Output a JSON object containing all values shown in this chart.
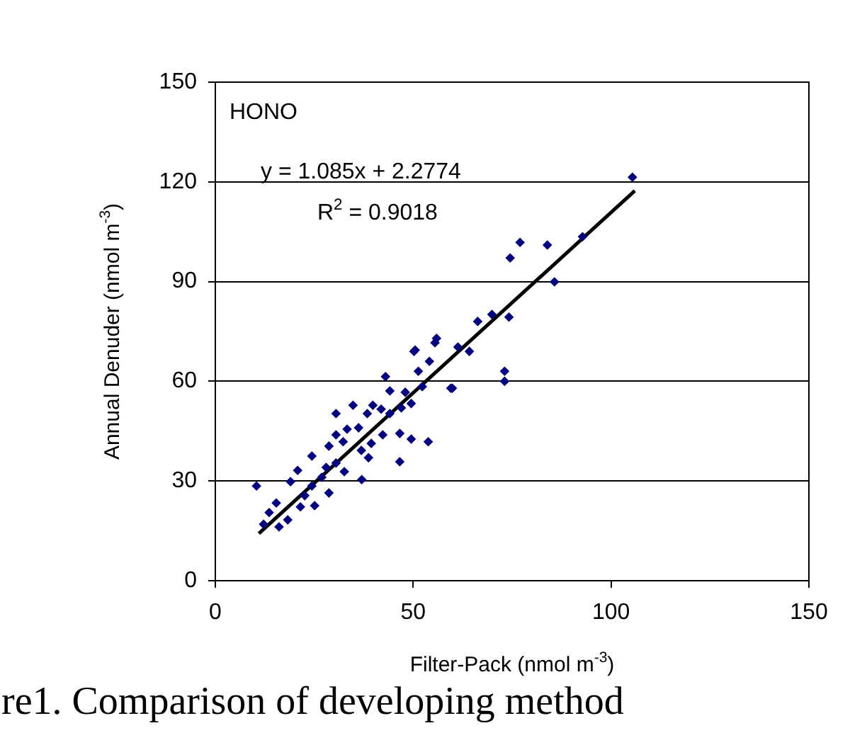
{
  "chart_data": {
    "type": "scatter",
    "xlabel": "Filter-Pack (nmol m$^{-3}$)",
    "ylabel": "Annual Denuder (nmol m$^{-3}$)",
    "annotations": [
      "HONO",
      "y = 1.085x + 2.2774",
      "R$^{2}$ = 0.9018",
      "re1. Comparison of developing method"
    ],
    "xlim": [
      0,
      150
    ],
    "xticks": [
      0,
      50,
      100,
      150
    ],
    "ylim": [
      0,
      150
    ],
    "yticks": [
      0,
      30,
      60,
      90,
      120,
      150
    ],
    "grid": "y",
    "legend": false,
    "marker": "diamond",
    "series": [
      {
        "color": "#000080",
        "x": [
          105.4,
          92.8,
          85.7,
          83.9,
          77.0,
          74.5,
          74.2,
          69.9,
          66.3,
          73.1,
          73.1,
          59.9,
          55.9,
          50.2,
          61.3,
          64.2,
          59.5,
          50.5,
          55.5,
          51.3,
          54.1,
          52.3,
          48.0,
          44.1,
          49.5,
          43.0,
          34.8,
          30.5,
          38.4,
          39.8,
          41.9,
          44.1,
          47.0,
          36.2,
          33.3,
          30.5,
          42.3,
          39.4,
          36.9,
          32.3,
          28.7,
          24.4,
          38.7,
          28.7,
          19.0,
          26.9,
          32.6,
          20.8,
          15.4,
          13.6,
          16.1,
          12.2,
          18.3,
          21.5,
          25.1,
          24.4,
          22.6,
          30.5,
          28.0,
          10.4,
          46.6,
          49.5,
          53.8,
          46.6,
          37.0
        ],
        "values": [
          121.4,
          103.5,
          89.9,
          101.0,
          101.8,
          97.1,
          79.3,
          80.1,
          78.0,
          63.0,
          60.0,
          57.9,
          72.9,
          69.0,
          70.3,
          69.0,
          57.9,
          69.4,
          71.6,
          63.0,
          66.0,
          58.4,
          56.7,
          57.1,
          53.3,
          61.4,
          52.8,
          50.3,
          50.3,
          52.8,
          51.6,
          50.3,
          52.0,
          46.0,
          45.6,
          43.9,
          43.9,
          41.3,
          39.2,
          41.8,
          40.5,
          37.5,
          37.0,
          26.4,
          29.8,
          31.1,
          32.8,
          33.2,
          23.4,
          20.5,
          16.2,
          17.0,
          18.3,
          22.2,
          22.6,
          28.5,
          25.6,
          35.4,
          34.1,
          28.5,
          35.8,
          42.6,
          41.8,
          44.3,
          30.4
        ]
      },
      {
        "type": "line",
        "marker": "none",
        "color": "#000000",
        "x": [
          11,
          106
        ],
        "values": [
          14.2,
          117.3
        ]
      }
    ]
  }
}
